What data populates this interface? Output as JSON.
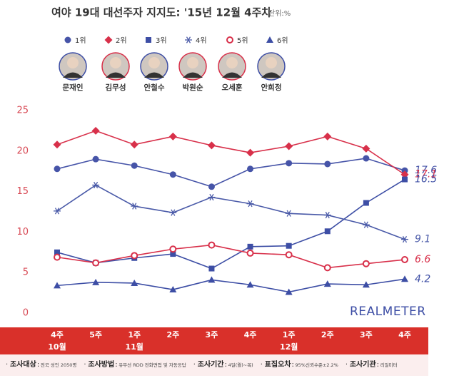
{
  "chart_data": {
    "type": "line",
    "title": "여야 19대 대선주자 지지도: '15년 12월 4주차",
    "unit": "단위:%",
    "watermark": "REALMETER",
    "categories": [
      "4주",
      "5주",
      "1주",
      "2주",
      "3주",
      "4주",
      "1주",
      "2주",
      "3주",
      "4주"
    ],
    "months": [
      "10월",
      null,
      "11월",
      null,
      null,
      null,
      "12월",
      null,
      null,
      null
    ],
    "ylim": [
      0,
      25
    ],
    "yticks": [
      0,
      5,
      10,
      15,
      20,
      25
    ],
    "series": [
      {
        "name": "1위",
        "candidate": "문재인",
        "color": "#4654a8",
        "marker": "circle",
        "values": [
          17.8,
          19.0,
          18.2,
          17.1,
          15.6,
          17.8,
          18.5,
          18.4,
          19.1,
          17.6
        ]
      },
      {
        "name": "2위",
        "candidate": "김무성",
        "color": "#d8304a",
        "marker": "diamond",
        "values": [
          20.8,
          22.5,
          20.8,
          21.8,
          20.7,
          19.8,
          20.6,
          21.8,
          20.3,
          17.1
        ]
      },
      {
        "name": "3위",
        "candidate": "안철수",
        "color": "#3d4ea5",
        "marker": "square",
        "values": [
          7.5,
          6.2,
          6.8,
          7.3,
          5.5,
          8.2,
          8.3,
          10.1,
          13.6,
          16.5
        ]
      },
      {
        "name": "4위",
        "candidate": "박원순",
        "color": "#4a5aa8",
        "marker": "asterisk",
        "values": [
          12.6,
          15.8,
          13.2,
          12.4,
          14.3,
          13.5,
          12.3,
          12.1,
          10.9,
          9.1
        ]
      },
      {
        "name": "5위",
        "candidate": "오세훈",
        "color": "#d8304a",
        "marker": "circle-open",
        "values": [
          6.9,
          6.2,
          7.1,
          7.9,
          8.4,
          7.4,
          7.2,
          5.6,
          6.1,
          6.6
        ]
      },
      {
        "name": "6위",
        "candidate": "안희정",
        "color": "#3d4ea5",
        "marker": "triangle",
        "values": [
          3.4,
          3.8,
          3.7,
          2.9,
          4.1,
          3.5,
          2.6,
          3.6,
          3.5,
          4.2
        ]
      }
    ],
    "footer": [
      {
        "label": "조사대상",
        "text": "전국 성인 2050명"
      },
      {
        "label": "조사방법",
        "text": "유무선 RDD 전화면접 및 자동응답"
      },
      {
        "label": "조사기간",
        "text": "4일(월)~목)"
      },
      {
        "label": "표집오차",
        "text": "95%신뢰수준±2.2%"
      },
      {
        "label": "조사기관",
        "text": "리얼미터"
      }
    ]
  }
}
